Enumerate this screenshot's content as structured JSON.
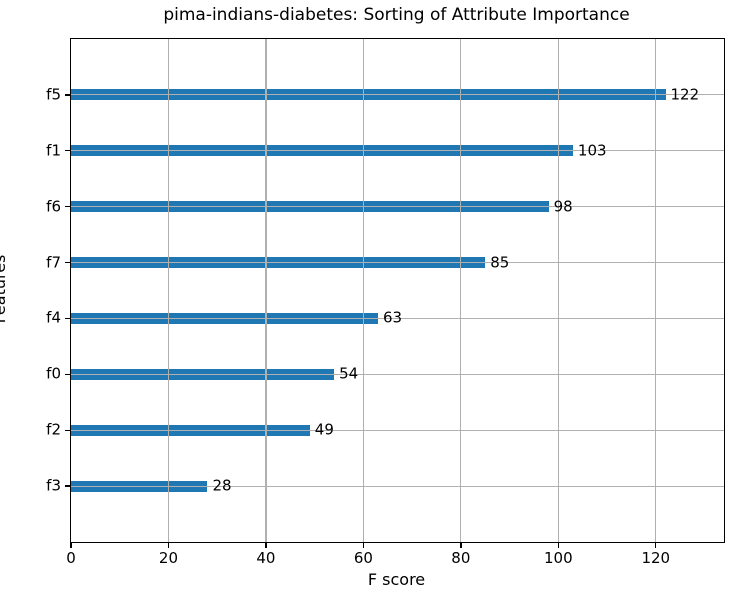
{
  "chart_data": {
    "type": "bar",
    "orientation": "horizontal",
    "title": "pima-indians-diabetes: Sorting of Attribute Importance",
    "xlabel": "F score",
    "ylabel": "Features",
    "categories": [
      "f5",
      "f1",
      "f6",
      "f7",
      "f4",
      "f0",
      "f2",
      "f3"
    ],
    "values": [
      122,
      103,
      98,
      85,
      63,
      54,
      49,
      28
    ],
    "value_labels": [
      "122",
      "103",
      "98",
      "85",
      "63",
      "54",
      "49",
      "28"
    ],
    "x_ticks": [
      0,
      20,
      40,
      60,
      80,
      100,
      120
    ],
    "xlim": [
      0,
      134
    ],
    "ylim": [
      -1,
      8
    ],
    "grid": true,
    "legend": false,
    "bar_color": "#1f77b4",
    "grid_color": "#b0b0b0",
    "axis_color": "#000000",
    "background_color": "#ffffff"
  }
}
